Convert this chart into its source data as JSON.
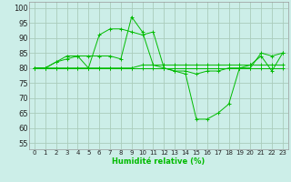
{
  "xlabel": "Humidité relative (%)",
  "background_color": "#cceee8",
  "grid_color": "#aaccbb",
  "line_color": "#00bb00",
  "xlim": [
    -0.5,
    23.5
  ],
  "ylim": [
    53,
    102
  ],
  "yticks": [
    55,
    60,
    65,
    70,
    75,
    80,
    85,
    90,
    95,
    100
  ],
  "xticks": [
    0,
    1,
    2,
    3,
    4,
    5,
    6,
    7,
    8,
    9,
    10,
    11,
    12,
    13,
    14,
    15,
    16,
    17,
    18,
    19,
    20,
    21,
    22,
    23
  ],
  "series": [
    [
      80,
      80,
      82,
      83,
      84,
      80,
      91,
      93,
      93,
      92,
      91,
      92,
      80,
      79,
      79,
      78,
      79,
      79,
      80,
      80,
      80,
      85,
      84,
      85
    ],
    [
      80,
      80,
      82,
      84,
      84,
      84,
      84,
      84,
      83,
      97,
      92,
      81,
      80,
      79,
      78,
      63,
      63,
      65,
      68,
      80,
      81,
      84,
      79,
      85
    ],
    [
      80,
      80,
      80,
      80,
      80,
      80,
      80,
      80,
      80,
      80,
      80,
      80,
      80,
      80,
      80,
      80,
      80,
      80,
      80,
      80,
      80,
      80,
      80,
      80
    ],
    [
      80,
      80,
      80,
      80,
      80,
      80,
      80,
      80,
      80,
      80,
      81,
      81,
      81,
      81,
      81,
      81,
      81,
      81,
      81,
      81,
      81,
      81,
      81,
      81
    ]
  ]
}
